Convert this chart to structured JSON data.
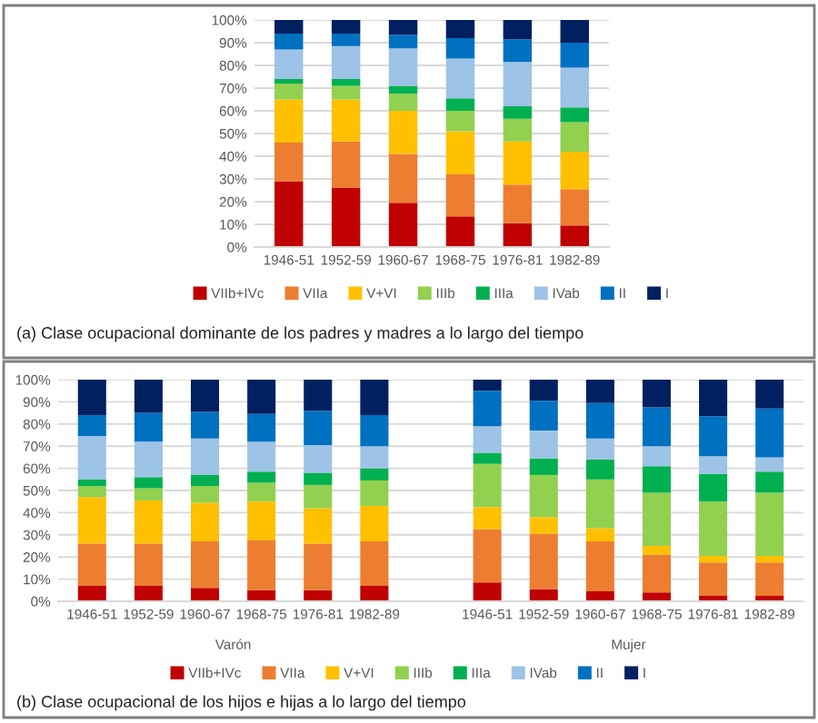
{
  "chart_data": [
    {
      "type": "bar",
      "stacked": true,
      "title": "(a) Clase ocupacional dominante de los padres y madres a lo largo del tiempo",
      "categories": [
        "1946-51",
        "1952-59",
        "1960-67",
        "1968-75",
        "1976-81",
        "1982-89"
      ],
      "ylim": [
        0,
        100
      ],
      "yticks": [
        {
          "value": 0,
          "label": "0%"
        },
        {
          "value": 10,
          "label": "10%"
        },
        {
          "value": 20,
          "label": "20%"
        },
        {
          "value": 30,
          "label": "30%"
        },
        {
          "value": 40,
          "label": "40%"
        },
        {
          "value": 50,
          "label": "50%"
        },
        {
          "value": 60,
          "label": "60%"
        },
        {
          "value": 70,
          "label": "70%"
        },
        {
          "value": 80,
          "label": "80%"
        },
        {
          "value": 90,
          "label": "90%"
        },
        {
          "value": 100,
          "label": "100%"
        }
      ],
      "grid": "y",
      "legend": "bottom",
      "series": [
        {
          "name": "VIIb+IVc",
          "color": "#c00000",
          "values": [
            29,
            26,
            19.5,
            13.5,
            10.5,
            9.5
          ]
        },
        {
          "name": "VIIa",
          "color": "#ed7d31",
          "values": [
            17,
            20.5,
            21.5,
            18.5,
            17,
            16
          ]
        },
        {
          "name": "V+VI",
          "color": "#ffc000",
          "values": [
            19,
            18.5,
            19,
            19,
            19,
            16.5
          ]
        },
        {
          "name": "IIIb",
          "color": "#92d050",
          "values": [
            7,
            6,
            7.5,
            9,
            10,
            13
          ]
        },
        {
          "name": "IIIa",
          "color": "#00b050",
          "values": [
            2,
            3,
            3.5,
            5.5,
            5.5,
            6.5
          ]
        },
        {
          "name": "IVab",
          "color": "#9dc3e6",
          "values": [
            13,
            14.5,
            16.5,
            17.5,
            19.5,
            17.5
          ]
        },
        {
          "name": "II",
          "color": "#0070c0",
          "values": [
            7,
            5.5,
            6,
            9,
            10,
            11
          ]
        },
        {
          "name": "I",
          "color": "#002060",
          "values": [
            6,
            6,
            6.5,
            8,
            8.5,
            10
          ]
        }
      ]
    },
    {
      "type": "bar",
      "stacked": true,
      "title": "(b) Clase ocupacional de los hijos e hijas a lo largo del tiempo",
      "categories": [
        "1946-51",
        "1952-59",
        "1960-67",
        "1968-75",
        "1976-81",
        "1982-89",
        "1946-51",
        "1952-59",
        "1960-67",
        "1968-75",
        "1976-81",
        "1982-89"
      ],
      "annotations": [
        "Varón",
        "Mujer"
      ],
      "ylim": [
        0,
        100
      ],
      "yticks": [
        {
          "value": 0,
          "label": "0%"
        },
        {
          "value": 10,
          "label": "10%"
        },
        {
          "value": 20,
          "label": "20%"
        },
        {
          "value": 30,
          "label": "30%"
        },
        {
          "value": 40,
          "label": "40%"
        },
        {
          "value": 50,
          "label": "50%"
        },
        {
          "value": 60,
          "label": "60%"
        },
        {
          "value": 70,
          "label": "70%"
        },
        {
          "value": 80,
          "label": "80%"
        },
        {
          "value": 90,
          "label": "90%"
        },
        {
          "value": 100,
          "label": "100%"
        }
      ],
      "grid": "y",
      "legend": "bottom",
      "series": [
        {
          "name": "VIIb+IVc",
          "color": "#c00000",
          "values": [
            7,
            7,
            6,
            5,
            5,
            7,
            8.5,
            5.5,
            4.5,
            4,
            2.5,
            2.5
          ]
        },
        {
          "name": "VIIa",
          "color": "#ed7d31",
          "values": [
            19,
            19,
            21,
            22.5,
            21,
            20,
            24,
            25,
            22.5,
            17,
            15,
            15
          ]
        },
        {
          "name": "V+VI",
          "color": "#ffc000",
          "values": [
            21,
            19.5,
            17.5,
            17.5,
            16,
            16,
            10,
            7.5,
            6,
            4,
            3,
            3
          ]
        },
        {
          "name": "IIIb",
          "color": "#92d050",
          "values": [
            5,
            5.5,
            7.5,
            8.5,
            10.5,
            11.5,
            19.5,
            19,
            22,
            24,
            24.5,
            28.5
          ]
        },
        {
          "name": "IIIa",
          "color": "#00b050",
          "values": [
            3,
            5,
            5,
            5,
            5.5,
            5.5,
            5,
            7.5,
            9,
            12,
            12.5,
            9.5
          ]
        },
        {
          "name": "IVab",
          "color": "#9dc3e6",
          "values": [
            19.5,
            16,
            16.5,
            13.5,
            12.5,
            10,
            12,
            12.5,
            9.5,
            9,
            8,
            6.5
          ]
        },
        {
          "name": "II",
          "color": "#0070c0",
          "values": [
            9.5,
            13,
            12,
            12.5,
            15.5,
            14,
            16,
            13.5,
            16,
            17.5,
            18,
            22
          ]
        },
        {
          "name": "I",
          "color": "#002060",
          "values": [
            16,
            15,
            14.5,
            15.5,
            14,
            16,
            5,
            9.5,
            10.5,
            12.5,
            16.5,
            13
          ]
        }
      ]
    }
  ]
}
